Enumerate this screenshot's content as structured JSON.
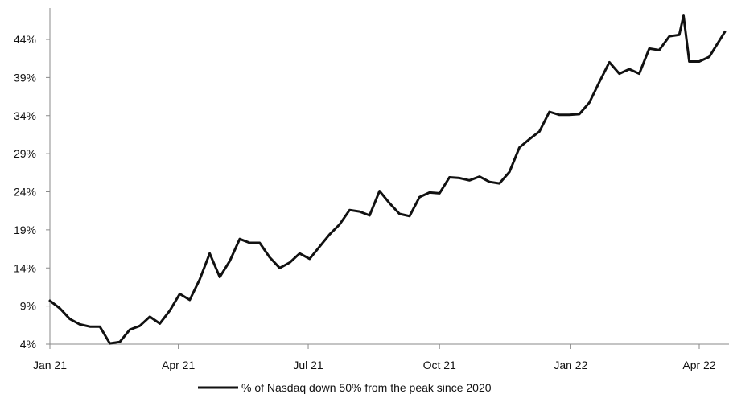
{
  "chart_data": {
    "type": "line",
    "y_ticks": [
      "4%",
      "9%",
      "14%",
      "19%",
      "24%",
      "29%",
      "34%",
      "39%",
      "44%"
    ],
    "y_tick_values": [
      4,
      9,
      14,
      19,
      24,
      29,
      34,
      39,
      44
    ],
    "ylim": [
      4,
      48
    ],
    "x_ticks": [
      "Jan 21",
      "Apr 21",
      "Jul 21",
      "Oct 21",
      "Jan 22",
      "Apr 22"
    ],
    "x_tick_values": [
      "2021-01-01",
      "2021-04-01",
      "2021-07-01",
      "2021-10-01",
      "2022-01-01",
      "2022-04-01"
    ],
    "xlim": [
      "2021-01-01",
      "2022-04-19"
    ],
    "grid": false,
    "legend_position": "bottom",
    "line_color": "#111111",
    "series": [
      {
        "name": "% of Nasdaq down 50% from the peak since 2020",
        "x": [
          "2021-01-01",
          "2021-01-08",
          "2021-01-15",
          "2021-01-22",
          "2021-01-29",
          "2021-02-05",
          "2021-02-12",
          "2021-02-19",
          "2021-02-26",
          "2021-03-05",
          "2021-03-12",
          "2021-03-19",
          "2021-03-26",
          "2021-04-02",
          "2021-04-09",
          "2021-04-16",
          "2021-04-23",
          "2021-04-30",
          "2021-05-07",
          "2021-05-14",
          "2021-05-21",
          "2021-05-28",
          "2021-06-04",
          "2021-06-11",
          "2021-06-18",
          "2021-06-25",
          "2021-07-02",
          "2021-07-09",
          "2021-07-16",
          "2021-07-23",
          "2021-07-30",
          "2021-08-06",
          "2021-08-13",
          "2021-08-20",
          "2021-08-27",
          "2021-09-03",
          "2021-09-10",
          "2021-09-17",
          "2021-09-24",
          "2021-10-01",
          "2021-10-08",
          "2021-10-15",
          "2021-10-22",
          "2021-10-29",
          "2021-11-05",
          "2021-11-12",
          "2021-11-19",
          "2021-11-26",
          "2021-12-03",
          "2021-12-10",
          "2021-12-17",
          "2021-12-24",
          "2021-12-31",
          "2022-01-07",
          "2022-01-14",
          "2022-01-21",
          "2022-01-28",
          "2022-02-04",
          "2022-02-11",
          "2022-02-18",
          "2022-02-25",
          "2022-03-04",
          "2022-03-11",
          "2022-03-18",
          "2022-03-21",
          "2022-03-25",
          "2022-04-01",
          "2022-04-08",
          "2022-04-15",
          "2022-04-19"
        ],
        "values": [
          9.7,
          8.7,
          7.3,
          6.6,
          6.3,
          6.3,
          4.1,
          4.3,
          5.9,
          6.4,
          7.6,
          6.7,
          8.4,
          10.6,
          9.8,
          12.5,
          15.9,
          12.8,
          14.9,
          17.8,
          17.3,
          17.3,
          15.4,
          14.0,
          14.7,
          15.9,
          15.2,
          16.8,
          18.4,
          19.7,
          21.6,
          21.4,
          20.9,
          24.1,
          22.5,
          21.1,
          20.8,
          23.3,
          23.9,
          23.8,
          25.9,
          25.8,
          25.5,
          26.0,
          25.3,
          25.1,
          26.6,
          29.8,
          30.9,
          31.9,
          34.5,
          34.1,
          34.1,
          34.2,
          35.7,
          38.4,
          41.0,
          39.5,
          40.1,
          39.5,
          42.8,
          42.6,
          44.4,
          44.6,
          47.1,
          41.1,
          41.1,
          41.7,
          43.8,
          45.0
        ]
      }
    ]
  }
}
